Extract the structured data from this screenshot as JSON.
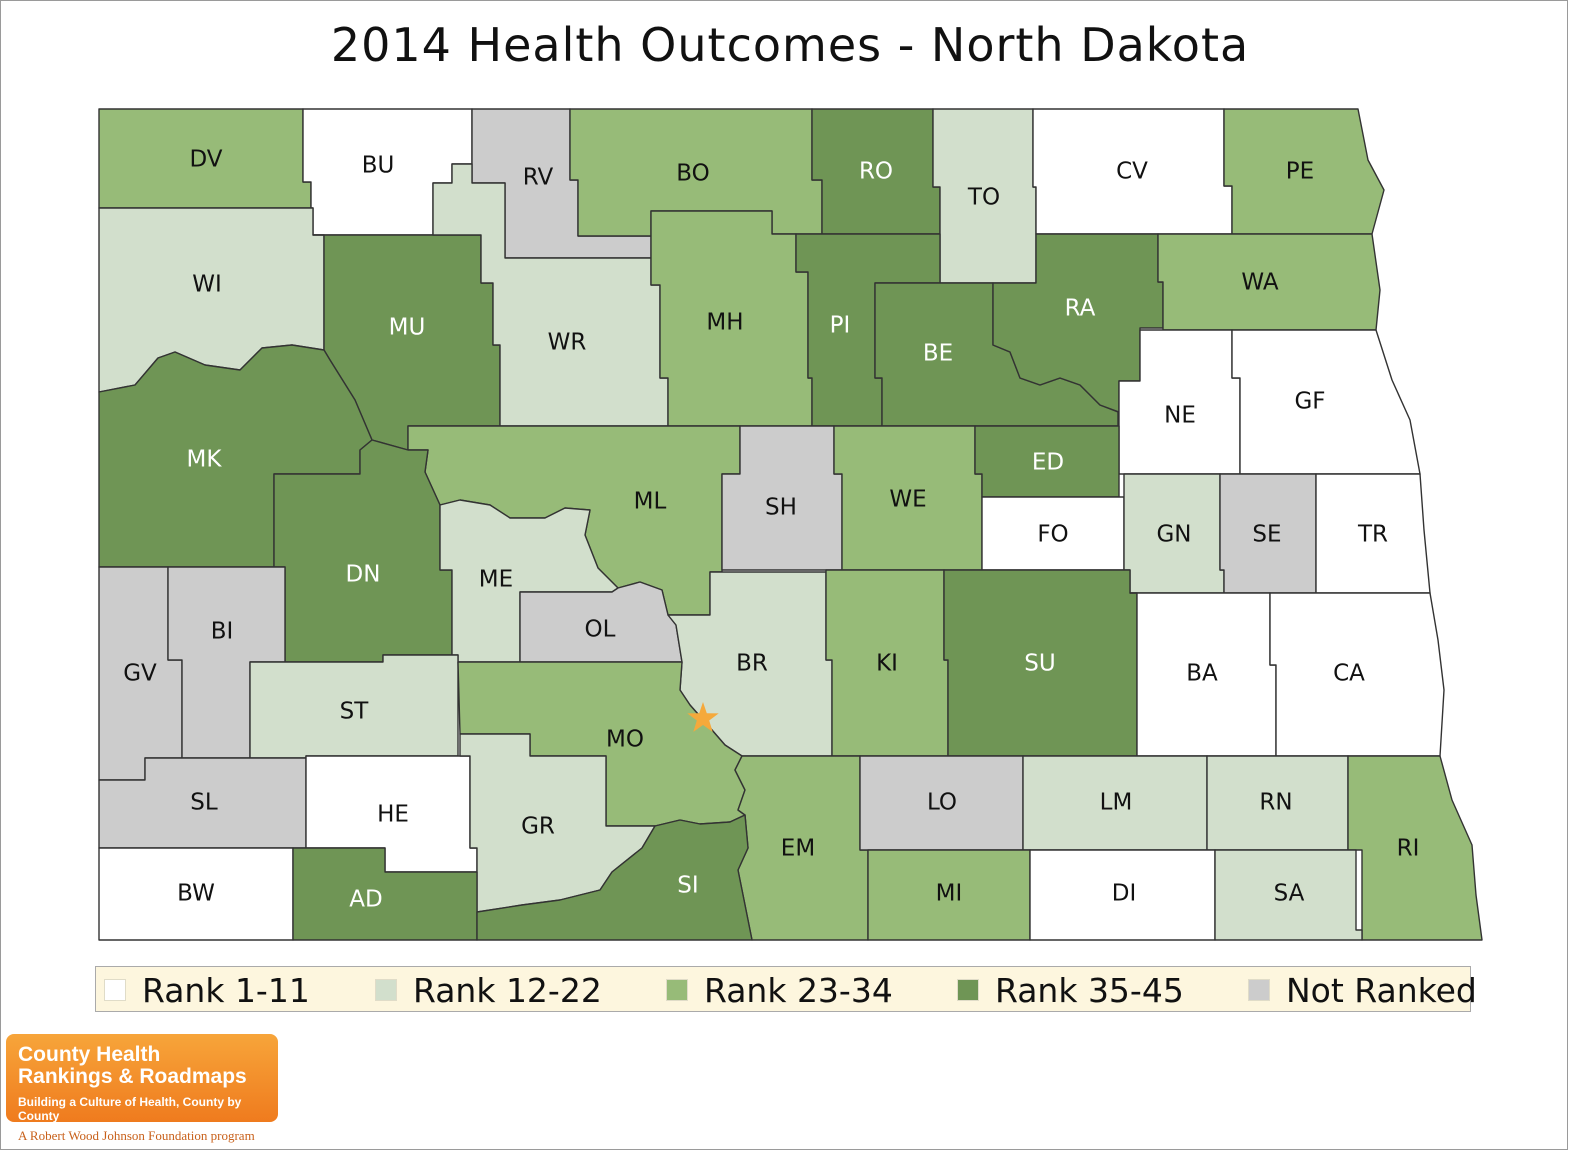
{
  "title": "2014 Health Outcomes - North Dakota",
  "colors": {
    "rank_1_11": "#ffffff",
    "rank_12_22": "#d2dfcc",
    "rank_23_34": "#97bb78",
    "rank_35_45": "#6f9555",
    "not_ranked": "#cccccc",
    "capital_star": "#f5a93b"
  },
  "legend": {
    "items": [
      {
        "label": "Rank 1-11",
        "class": "rank_1_11"
      },
      {
        "label": "Rank 12-22",
        "class": "rank_12_22"
      },
      {
        "label": "Rank 23-34",
        "class": "rank_23_34"
      },
      {
        "label": "Rank 35-45",
        "class": "rank_35_45"
      },
      {
        "label": "Not Ranked",
        "class": "not_ranked"
      }
    ]
  },
  "counties": [
    {
      "code": "DV",
      "class": "rank_23_34"
    },
    {
      "code": "BU",
      "class": "rank_1_11"
    },
    {
      "code": "RV",
      "class": "not_ranked"
    },
    {
      "code": "BO",
      "class": "rank_23_34"
    },
    {
      "code": "RO",
      "class": "rank_35_45"
    },
    {
      "code": "TO",
      "class": "rank_12_22"
    },
    {
      "code": "CV",
      "class": "rank_1_11"
    },
    {
      "code": "PE",
      "class": "rank_23_34"
    },
    {
      "code": "WI",
      "class": "rank_12_22"
    },
    {
      "code": "MU",
      "class": "rank_35_45"
    },
    {
      "code": "WR",
      "class": "rank_12_22"
    },
    {
      "code": "MH",
      "class": "rank_23_34"
    },
    {
      "code": "PI",
      "class": "rank_35_45"
    },
    {
      "code": "BE",
      "class": "rank_35_45"
    },
    {
      "code": "RA",
      "class": "rank_35_45"
    },
    {
      "code": "WA",
      "class": "rank_23_34"
    },
    {
      "code": "NE",
      "class": "rank_1_11"
    },
    {
      "code": "GF",
      "class": "rank_1_11"
    },
    {
      "code": "MK",
      "class": "rank_35_45"
    },
    {
      "code": "ML",
      "class": "rank_23_34"
    },
    {
      "code": "SH",
      "class": "not_ranked"
    },
    {
      "code": "WE",
      "class": "rank_23_34"
    },
    {
      "code": "ED",
      "class": "rank_35_45"
    },
    {
      "code": "FO",
      "class": "rank_1_11"
    },
    {
      "code": "GN",
      "class": "rank_12_22"
    },
    {
      "code": "SE",
      "class": "not_ranked"
    },
    {
      "code": "TR",
      "class": "rank_1_11"
    },
    {
      "code": "DN",
      "class": "rank_35_45"
    },
    {
      "code": "ME",
      "class": "rank_12_22"
    },
    {
      "code": "OL",
      "class": "not_ranked"
    },
    {
      "code": "BR",
      "class": "rank_12_22"
    },
    {
      "code": "KI",
      "class": "rank_23_34"
    },
    {
      "code": "SU",
      "class": "rank_35_45"
    },
    {
      "code": "BA",
      "class": "rank_1_11"
    },
    {
      "code": "CA",
      "class": "rank_1_11"
    },
    {
      "code": "GV",
      "class": "not_ranked"
    },
    {
      "code": "BI",
      "class": "not_ranked"
    },
    {
      "code": "ST",
      "class": "rank_12_22"
    },
    {
      "code": "MO",
      "class": "rank_23_34"
    },
    {
      "code": "SL",
      "class": "not_ranked"
    },
    {
      "code": "HE",
      "class": "rank_1_11"
    },
    {
      "code": "GR",
      "class": "rank_12_22"
    },
    {
      "code": "EM",
      "class": "rank_23_34"
    },
    {
      "code": "LO",
      "class": "not_ranked"
    },
    {
      "code": "LM",
      "class": "rank_12_22"
    },
    {
      "code": "RN",
      "class": "rank_12_22"
    },
    {
      "code": "RI",
      "class": "rank_23_34"
    },
    {
      "code": "BW",
      "class": "rank_1_11"
    },
    {
      "code": "AD",
      "class": "rank_35_45"
    },
    {
      "code": "SI",
      "class": "rank_35_45"
    },
    {
      "code": "MI",
      "class": "rank_23_34"
    },
    {
      "code": "DI",
      "class": "rank_1_11"
    },
    {
      "code": "SA",
      "class": "rank_12_22"
    }
  ],
  "logo": {
    "line1": "County Health",
    "line2": "Rankings & Roadmaps",
    "tagline": "Building a Culture of Health, County by County",
    "footer": "A Robert Wood Johnson Foundation program"
  }
}
